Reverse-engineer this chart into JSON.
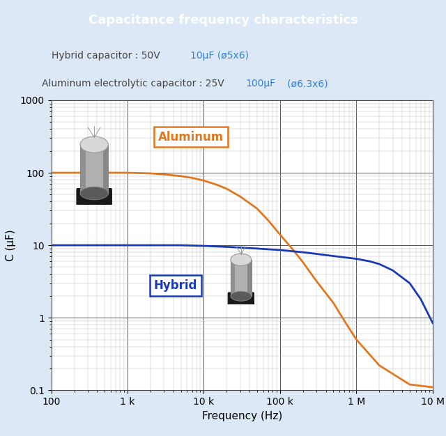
{
  "title": "Capacitance frequency characteristics",
  "title_bg_color": "#5b9bd5",
  "title_text_color": "#ffffff",
  "subtitle_line1_black": "Hybrid capacitor : 50V ",
  "subtitle_line1_blue": "10μF (ø5x6)",
  "subtitle_line2_black": "Aluminum electrolytic capacitor : 25V ",
  "subtitle_line2_blue": "100μF",
  "subtitle_line2_blue2": "   (ø6.3x6)",
  "xlabel": "Frequency (Hz)",
  "ylabel": "C (μF)",
  "xtick_positions": [
    100,
    1000,
    10000,
    100000,
    1000000,
    10000000
  ],
  "xtick_labels": [
    "100",
    "1 k",
    "10 k",
    "100 k",
    "1 M",
    "10 M"
  ],
  "ytick_positions": [
    0.1,
    1,
    10,
    100,
    1000
  ],
  "ytick_labels": [
    "0.1",
    "1",
    "10",
    "100",
    "1000"
  ],
  "outer_bg_color": "#dce8f5",
  "plot_bg_color": "#ffffff",
  "grid_color_major": "#555555",
  "grid_color_minor": "#c0c0c0",
  "aluminum_color": "#e07820",
  "hybrid_color": "#1a3ab5",
  "aluminum_label": "Aluminum",
  "hybrid_label": "Hybrid",
  "aluminum_freq": [
    100,
    200,
    500,
    1000,
    2000,
    3000,
    5000,
    7000,
    10000,
    15000,
    20000,
    30000,
    50000,
    70000,
    100000,
    150000,
    200000,
    300000,
    500000,
    700000,
    1000000,
    2000000,
    5000000,
    10000000
  ],
  "aluminum_cap": [
    100,
    100,
    100,
    100,
    98,
    95,
    90,
    85,
    78,
    68,
    60,
    47,
    32,
    22,
    14,
    8.5,
    5.8,
    3.2,
    1.6,
    0.9,
    0.5,
    0.22,
    0.12,
    0.11
  ],
  "hybrid_freq": [
    100,
    200,
    500,
    1000,
    2000,
    5000,
    10000,
    20000,
    30000,
    50000,
    70000,
    100000,
    200000,
    300000,
    500000,
    700000,
    1000000,
    1500000,
    2000000,
    3000000,
    5000000,
    7000000,
    10000000
  ],
  "hybrid_cap": [
    10,
    10,
    10,
    10,
    10,
    10,
    9.8,
    9.5,
    9.3,
    9.0,
    8.8,
    8.6,
    8.0,
    7.6,
    7.1,
    6.8,
    6.5,
    6.0,
    5.5,
    4.5,
    3.0,
    1.8,
    0.85
  ]
}
